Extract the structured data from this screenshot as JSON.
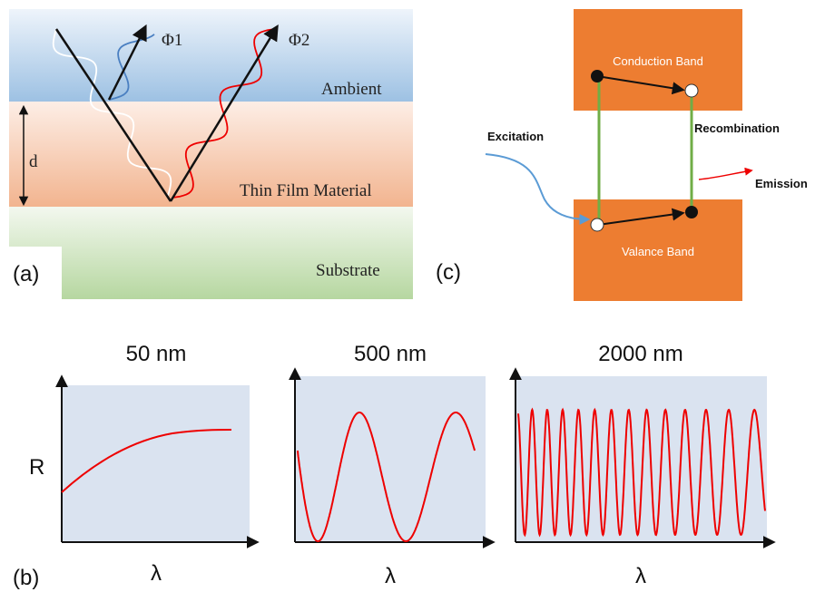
{
  "panel_a": {
    "label": "(a)",
    "layers": [
      "Ambient",
      "Thin Film Material",
      "Substrate"
    ],
    "beams": [
      "Φ1",
      "Φ2"
    ],
    "thickness": "d"
  },
  "panel_c": {
    "label": "(c)",
    "bands": [
      "Conduction Band",
      "Valance Band"
    ],
    "processes": [
      "Excitation",
      "Recombination",
      "Emission"
    ]
  },
  "panel_b": {
    "label": "(b)",
    "plots": [
      {
        "title": "50 nm",
        "x_label": "λ",
        "y_label": "R"
      },
      {
        "title": "500 nm",
        "x_label": "λ"
      },
      {
        "title": "2000 nm",
        "x_label": "λ"
      }
    ]
  }
}
